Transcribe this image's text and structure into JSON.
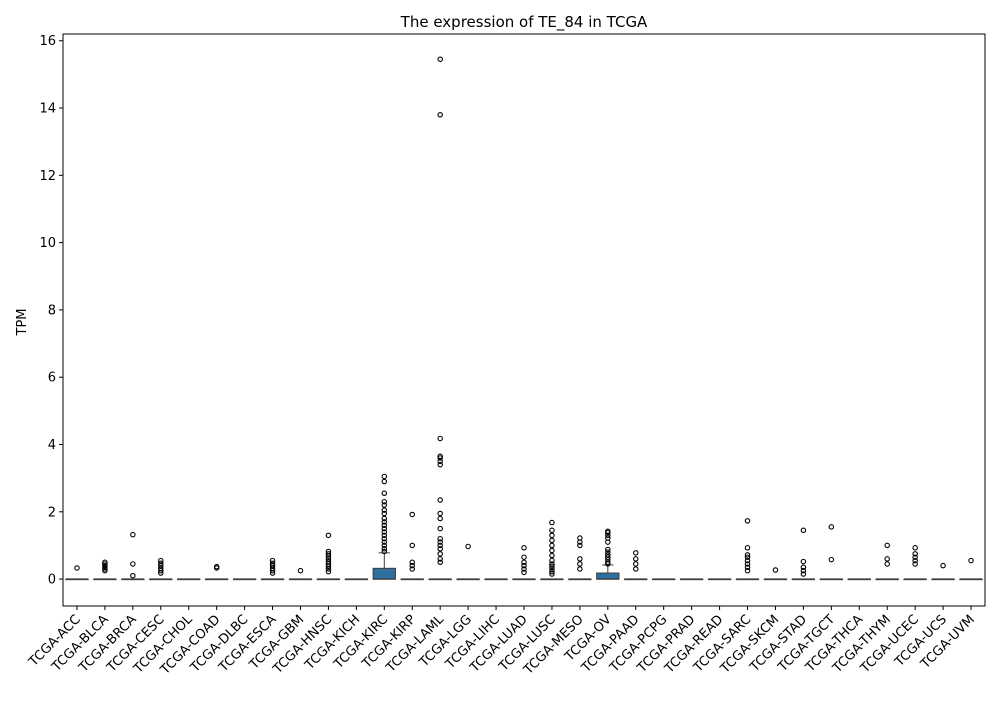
{
  "chart_data": {
    "type": "box",
    "title": "The expression of TE_84 in TCGA",
    "xlabel": "",
    "ylabel": "TPM",
    "ylim": [
      -0.8,
      16.2
    ],
    "yticks": [
      0,
      2,
      4,
      6,
      8,
      10,
      12,
      14,
      16
    ],
    "grid": false,
    "legend": "none",
    "box_color": "#2e6f9e",
    "categories": [
      "TCGA-ACC",
      "TCGA-BLCA",
      "TCGA-BRCA",
      "TCGA-CESC",
      "TCGA-CHOL",
      "TCGA-COAD",
      "TCGA-DLBC",
      "TCGA-ESCA",
      "TCGA-GBM",
      "TCGA-HNSC",
      "TCGA-KICH",
      "TCGA-KIRC",
      "TCGA-KIRP",
      "TCGA-LAML",
      "TCGA-LGG",
      "TCGA-LIHC",
      "TCGA-LUAD",
      "TCGA-LUSC",
      "TCGA-MESO",
      "TCGA-OV",
      "TCGA-PAAD",
      "TCGA-PCPG",
      "TCGA-PRAD",
      "TCGA-READ",
      "TCGA-SARC",
      "TCGA-SKCM",
      "TCGA-STAD",
      "TCGA-TGCT",
      "TCGA-THCA",
      "TCGA-THYM",
      "TCGA-UCEC",
      "TCGA-UCS",
      "TCGA-UVM"
    ],
    "boxes": [
      {
        "q1": 0,
        "median": 0,
        "q3": 0,
        "whisker_low": 0,
        "whisker_high": 0,
        "outliers": [
          0.33
        ]
      },
      {
        "q1": 0,
        "median": 0,
        "q3": 0,
        "whisker_low": 0,
        "whisker_high": 0,
        "outliers": [
          0.25,
          0.3,
          0.35,
          0.4,
          0.45,
          0.5
        ]
      },
      {
        "q1": 0,
        "median": 0,
        "q3": 0,
        "whisker_low": 0,
        "whisker_high": 0,
        "outliers": [
          0.1,
          0.45,
          1.32
        ]
      },
      {
        "q1": 0,
        "median": 0,
        "q3": 0,
        "whisker_low": 0,
        "whisker_high": 0,
        "outliers": [
          0.18,
          0.25,
          0.32,
          0.4,
          0.47,
          0.55
        ]
      },
      {
        "q1": 0,
        "median": 0,
        "q3": 0,
        "whisker_low": 0,
        "whisker_high": 0,
        "outliers": []
      },
      {
        "q1": 0,
        "median": 0,
        "q3": 0,
        "whisker_low": 0,
        "whisker_high": 0,
        "outliers": [
          0.33,
          0.37
        ]
      },
      {
        "q1": 0,
        "median": 0,
        "q3": 0,
        "whisker_low": 0,
        "whisker_high": 0,
        "outliers": []
      },
      {
        "q1": 0,
        "median": 0,
        "q3": 0,
        "whisker_low": 0,
        "whisker_high": 0,
        "outliers": [
          0.18,
          0.25,
          0.32,
          0.4,
          0.47,
          0.55
        ]
      },
      {
        "q1": 0,
        "median": 0,
        "q3": 0,
        "whisker_low": 0,
        "whisker_high": 0,
        "outliers": [
          0.25
        ]
      },
      {
        "q1": 0,
        "median": 0,
        "q3": 0,
        "whisker_low": 0,
        "whisker_high": 0,
        "outliers": [
          0.22,
          0.3,
          0.38,
          0.45,
          0.52,
          0.6,
          0.68,
          0.75,
          0.82,
          1.3
        ]
      },
      {
        "q1": 0,
        "median": 0,
        "q3": 0,
        "whisker_low": 0,
        "whisker_high": 0,
        "outliers": []
      },
      {
        "q1": 0,
        "median": 0,
        "q3": 0.32,
        "whisker_low": 0,
        "whisker_high": 0.78,
        "outliers": [
          0.82,
          0.9,
          1.0,
          1.1,
          1.2,
          1.3,
          1.4,
          1.5,
          1.6,
          1.7,
          1.8,
          1.95,
          2.05,
          2.2,
          2.3,
          2.55,
          2.9,
          3.05
        ]
      },
      {
        "q1": 0,
        "median": 0,
        "q3": 0,
        "whisker_low": 0,
        "whisker_high": 0,
        "outliers": [
          0.3,
          0.4,
          0.5,
          1.0,
          1.92
        ]
      },
      {
        "q1": 0,
        "median": 0,
        "q3": 0,
        "whisker_low": 0,
        "whisker_high": 0,
        "outliers": [
          0.5,
          0.6,
          0.75,
          0.9,
          1.0,
          1.1,
          1.2,
          1.5,
          1.8,
          1.95,
          2.35,
          3.4,
          3.5,
          3.6,
          3.65,
          4.18,
          13.8,
          15.45
        ]
      },
      {
        "q1": 0,
        "median": 0,
        "q3": 0,
        "whisker_low": 0,
        "whisker_high": 0,
        "outliers": [
          0.97
        ]
      },
      {
        "q1": 0,
        "median": 0,
        "q3": 0,
        "whisker_low": 0,
        "whisker_high": 0,
        "outliers": []
      },
      {
        "q1": 0,
        "median": 0,
        "q3": 0,
        "whisker_low": 0,
        "whisker_high": 0,
        "outliers": [
          0.2,
          0.3,
          0.4,
          0.5,
          0.65,
          0.93
        ]
      },
      {
        "q1": 0,
        "median": 0,
        "q3": 0,
        "whisker_low": 0,
        "whisker_high": 0,
        "outliers": [
          0.15,
          0.22,
          0.3,
          0.38,
          0.45,
          0.55,
          0.7,
          0.85,
          1.0,
          1.15,
          1.3,
          1.45,
          1.68
        ]
      },
      {
        "q1": 0,
        "median": 0,
        "q3": 0,
        "whisker_low": 0,
        "whisker_high": 0,
        "outliers": [
          0.3,
          0.45,
          0.6,
          1.0,
          1.1,
          1.22
        ]
      },
      {
        "q1": 0,
        "median": 0,
        "q3": 0.18,
        "whisker_low": 0,
        "whisker_high": 0.42,
        "outliers": [
          0.45,
          0.5,
          0.58,
          0.65,
          0.72,
          0.8,
          0.88,
          1.1,
          1.22,
          1.3,
          1.38,
          1.42
        ]
      },
      {
        "q1": 0,
        "median": 0,
        "q3": 0,
        "whisker_low": 0,
        "whisker_high": 0,
        "outliers": [
          0.3,
          0.45,
          0.6,
          0.78
        ]
      },
      {
        "q1": 0,
        "median": 0,
        "q3": 0,
        "whisker_low": 0,
        "whisker_high": 0,
        "outliers": []
      },
      {
        "q1": 0,
        "median": 0,
        "q3": 0,
        "whisker_low": 0,
        "whisker_high": 0,
        "outliers": []
      },
      {
        "q1": 0,
        "median": 0,
        "q3": 0,
        "whisker_low": 0,
        "whisker_high": 0,
        "outliers": []
      },
      {
        "q1": 0,
        "median": 0,
        "q3": 0,
        "whisker_low": 0,
        "whisker_high": 0,
        "outliers": [
          0.25,
          0.35,
          0.45,
          0.55,
          0.65,
          0.72,
          0.93,
          1.73
        ]
      },
      {
        "q1": 0,
        "median": 0,
        "q3": 0,
        "whisker_low": 0,
        "whisker_high": 0,
        "outliers": [
          0.27
        ]
      },
      {
        "q1": 0,
        "median": 0,
        "q3": 0,
        "whisker_low": 0,
        "whisker_high": 0,
        "outliers": [
          0.15,
          0.25,
          0.35,
          0.52,
          1.45
        ]
      },
      {
        "q1": 0,
        "median": 0,
        "q3": 0,
        "whisker_low": 0,
        "whisker_high": 0,
        "outliers": [
          0.58,
          1.55
        ]
      },
      {
        "q1": 0,
        "median": 0,
        "q3": 0,
        "whisker_low": 0,
        "whisker_high": 0,
        "outliers": []
      },
      {
        "q1": 0,
        "median": 0,
        "q3": 0,
        "whisker_low": 0,
        "whisker_high": 0,
        "outliers": [
          0.45,
          0.6,
          1.0
        ]
      },
      {
        "q1": 0,
        "median": 0,
        "q3": 0,
        "whisker_low": 0,
        "whisker_high": 0,
        "outliers": [
          0.45,
          0.55,
          0.65,
          0.75,
          0.93
        ]
      },
      {
        "q1": 0,
        "median": 0,
        "q3": 0,
        "whisker_low": 0,
        "whisker_high": 0,
        "outliers": [
          0.4
        ]
      },
      {
        "q1": 0,
        "median": 0,
        "q3": 0,
        "whisker_low": 0,
        "whisker_high": 0,
        "outliers": [
          0.55
        ]
      }
    ]
  }
}
